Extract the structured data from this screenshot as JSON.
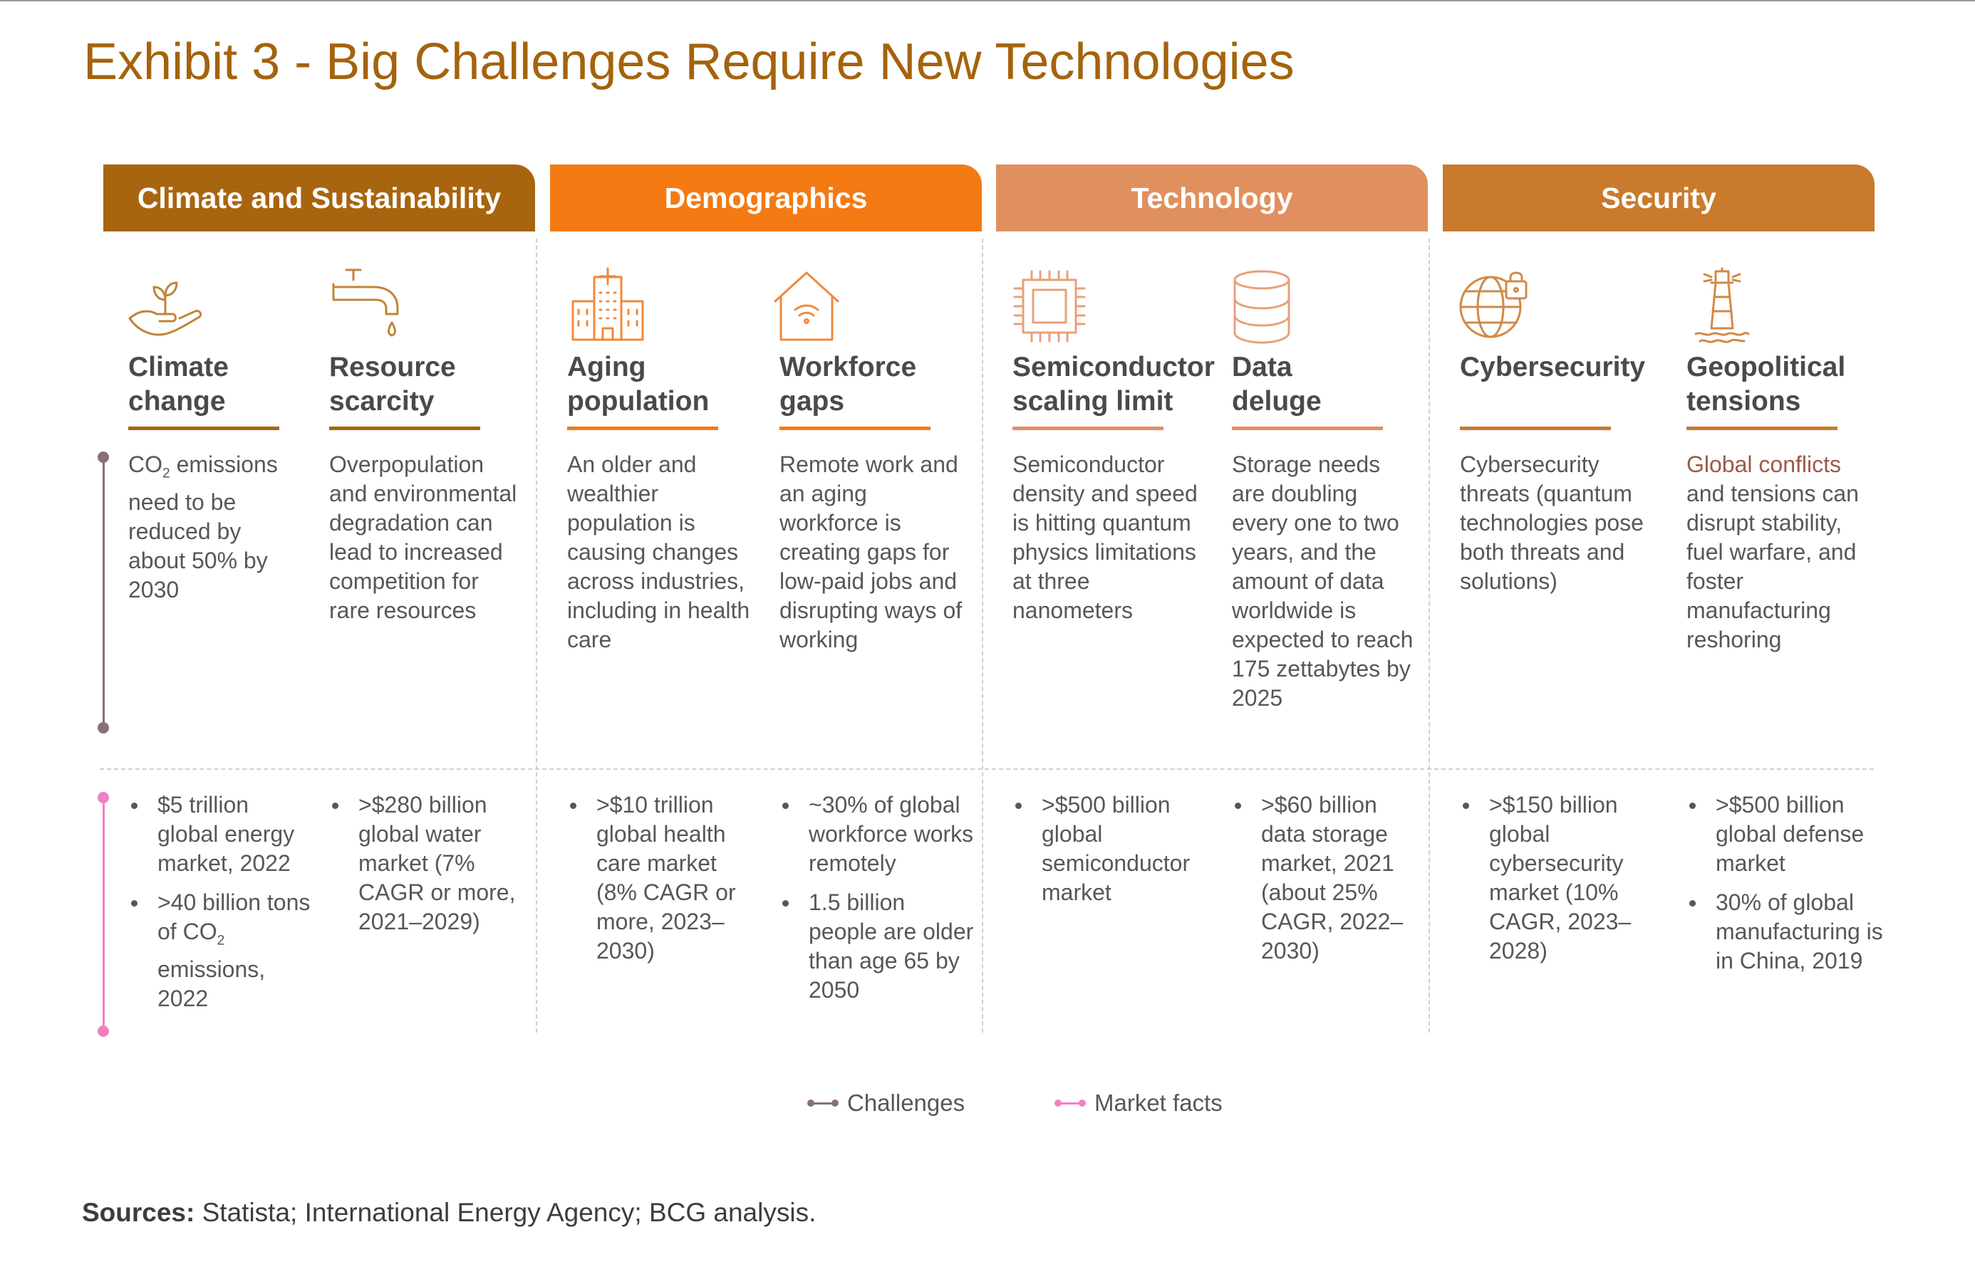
{
  "title": "Exhibit 3 - Big Challenges Require New Technologies",
  "categories": [
    {
      "label": "Climate and Sustainability",
      "color": "#a8650f"
    },
    {
      "label": "Demographics",
      "color": "#f47a14"
    },
    {
      "label": "Technology",
      "color": "#e0905e"
    },
    {
      "label": "Security",
      "color": "#c97a2c"
    }
  ],
  "columns": [
    {
      "icon": "hand-plant-icon",
      "title": [
        "Climate",
        "change"
      ],
      "challenge": {
        "prefix": "CO",
        "sub": "2",
        "rest": " emissions need to be reduced by about 50% by 2030"
      },
      "facts": [
        {
          "text": "$5 trillion global energy market, 2022"
        },
        {
          "prefix": ">40 billion tons of CO",
          "sub": "2",
          "rest": " emissions, 2022"
        }
      ]
    },
    {
      "icon": "water-tap-icon",
      "title": [
        "Resource",
        "scarcity"
      ],
      "challenge": {
        "text": "Overpopulation and environmental degradation can lead to increased competition for rare resources"
      },
      "facts": [
        {
          "text": ">$280 billion global water market (7% CAGR or more, 2021–2029)"
        }
      ]
    },
    {
      "icon": "hospital-icon",
      "title": [
        "Aging",
        "population"
      ],
      "challenge": {
        "text": "An older and wealthier population is causing changes across industries, including in health care"
      },
      "facts": [
        {
          "text": ">$10 trillion global health care market (8% CAGR or more, 2023–2030)"
        }
      ]
    },
    {
      "icon": "remote-home-icon",
      "title": [
        "Workforce",
        "gaps"
      ],
      "challenge": {
        "text": "Remote work and an aging workforce is creating gaps for low-paid jobs and disrupting ways of working"
      },
      "facts": [
        {
          "text": "~30% of global workforce works remotely"
        },
        {
          "text": "1.5 billion people are older than age 65 by 2050"
        }
      ]
    },
    {
      "icon": "chip-icon",
      "title": [
        "Semiconductor",
        "scaling limit"
      ],
      "challenge": {
        "text": "Semiconductor density and speed is hitting quantum physics limitations at three nanometers"
      },
      "facts": [
        {
          "text": ">$500 billion global semiconductor market"
        }
      ]
    },
    {
      "icon": "database-icon",
      "title": [
        "Data",
        "deluge"
      ],
      "challenge": {
        "text": "Storage needs are doubling every one to two years, and the amount of data worldwide is expected to reach 175 zettabytes by 2025"
      },
      "facts": [
        {
          "text": ">$60 billion data storage market, 2021 (about 25% CAGR, 2022–2030)"
        }
      ]
    },
    {
      "icon": "globe-lock-icon",
      "title": [
        "Cybersecurity",
        ""
      ],
      "challenge": {
        "text": "Cybersecurity threats (quantum technologies pose both threats and solutions)"
      },
      "facts": [
        {
          "text": ">$150 billion global cybersecurity market (10% CAGR, 2023–2028)"
        }
      ]
    },
    {
      "icon": "lighthouse-icon",
      "title": [
        "Geopolitical",
        "tensions"
      ],
      "challenge": {
        "highlight": "Global conflicts",
        "rest": " and tensions can disrupt stability, fuel warfare, and foster manufacturing reshoring"
      },
      "facts": [
        {
          "text": ">$500 billion global defense market"
        },
        {
          "text": "30% of global manufacturing is in China, 2019"
        }
      ]
    }
  ],
  "legend": [
    {
      "label": "Challenges",
      "color": "#8a6f78"
    },
    {
      "label": "Market facts",
      "color": "#f280c0"
    }
  ],
  "sources": {
    "label": "Sources:",
    "text": " Statista; International Energy Agency; BCG analysis."
  }
}
